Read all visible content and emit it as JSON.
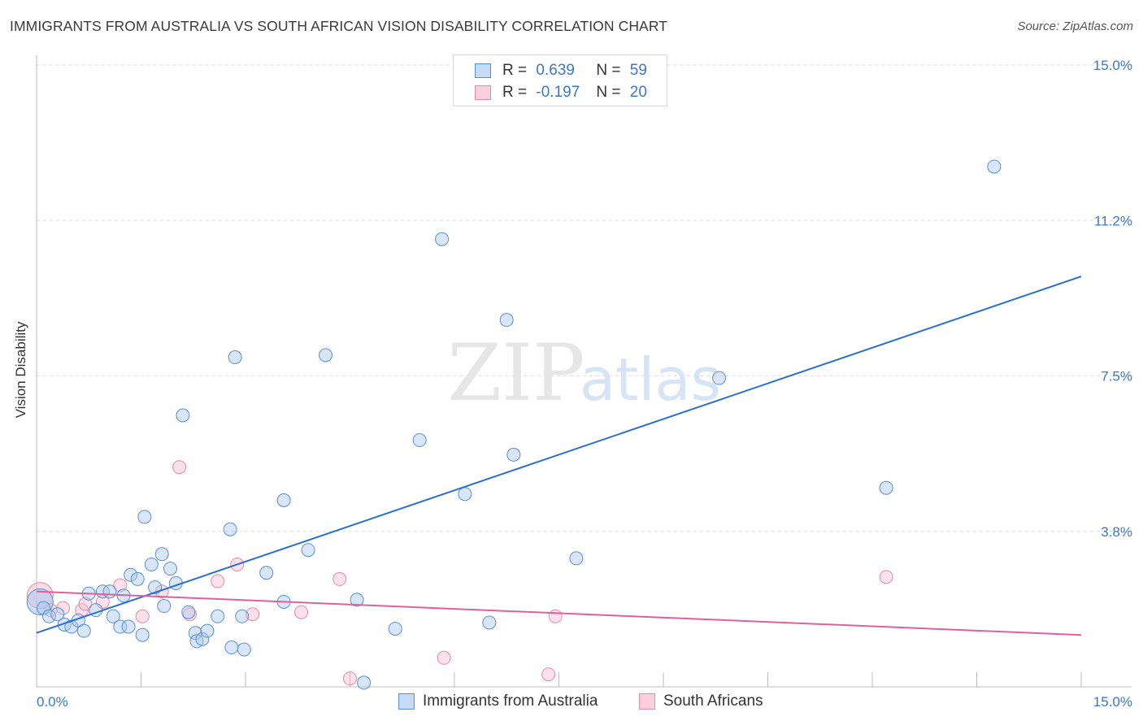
{
  "title": "IMMIGRANTS FROM AUSTRALIA VS SOUTH AFRICAN VISION DISABILITY CORRELATION CHART",
  "source": "Source: ZipAtlas.com",
  "watermark": {
    "zip": "ZIP",
    "atlas": "atlas"
  },
  "legend": {
    "series1": {
      "r_label": "R =",
      "r_value": "0.639",
      "n_label": "N =",
      "n_value": "59"
    },
    "series2": {
      "r_label": "R =",
      "r_value": "-0.197",
      "n_label": "N =",
      "n_value": "20"
    }
  },
  "colors": {
    "blue_fill": "#a9c8f0",
    "blue_stroke": "#5a8fd6",
    "blue_line": "#2a6fd1",
    "pink_fill": "#f7bfd0",
    "pink_stroke": "#e88aa8",
    "pink_line": "#e0609a",
    "tick_label": "#3b78c9",
    "grid": "#dddddd"
  },
  "chart_data": {
    "type": "scatter",
    "title": "IMMIGRANTS FROM AUSTRALIA VS SOUTH AFRICAN VISION DISABILITY CORRELATION CHART",
    "xlabel": "",
    "ylabel": "Vision Disability",
    "xlim": [
      0,
      15
    ],
    "ylim": [
      0,
      15
    ],
    "x_tick_labels": [
      "0.0%",
      "15.0%"
    ],
    "y_ticks": [
      3.75,
      7.5,
      11.25,
      15.0
    ],
    "y_tick_labels": [
      "3.8%",
      "7.5%",
      "11.2%",
      "15.0%"
    ],
    "series": [
      {
        "name": "Immigrants from Australia",
        "color": "#5a8fd6",
        "R": 0.639,
        "N": 59,
        "trendline": {
          "x": [
            0,
            15
          ],
          "y": [
            1.3,
            9.9
          ]
        },
        "points": [
          {
            "x": 0.05,
            "y": 2.05,
            "big": true
          },
          {
            "x": 0.1,
            "y": 1.9
          },
          {
            "x": 0.18,
            "y": 1.7
          },
          {
            "x": 0.3,
            "y": 1.75
          },
          {
            "x": 0.4,
            "y": 1.5
          },
          {
            "x": 0.5,
            "y": 1.45
          },
          {
            "x": 0.6,
            "y": 1.6
          },
          {
            "x": 0.68,
            "y": 1.35
          },
          {
            "x": 0.75,
            "y": 2.25
          },
          {
            "x": 0.85,
            "y": 1.85
          },
          {
            "x": 0.95,
            "y": 2.3
          },
          {
            "x": 1.05,
            "y": 2.3
          },
          {
            "x": 1.1,
            "y": 1.7
          },
          {
            "x": 1.2,
            "y": 1.45
          },
          {
            "x": 1.25,
            "y": 2.2
          },
          {
            "x": 1.32,
            "y": 1.45
          },
          {
            "x": 1.35,
            "y": 2.7
          },
          {
            "x": 1.45,
            "y": 2.6
          },
          {
            "x": 1.52,
            "y": 1.25
          },
          {
            "x": 1.55,
            "y": 4.1
          },
          {
            "x": 1.65,
            "y": 2.95
          },
          {
            "x": 1.7,
            "y": 2.4
          },
          {
            "x": 1.8,
            "y": 3.2
          },
          {
            "x": 1.83,
            "y": 1.95
          },
          {
            "x": 1.92,
            "y": 2.85
          },
          {
            "x": 2.0,
            "y": 2.5
          },
          {
            "x": 2.1,
            "y": 6.55
          },
          {
            "x": 2.18,
            "y": 1.8
          },
          {
            "x": 2.28,
            "y": 1.3
          },
          {
            "x": 2.3,
            "y": 1.1
          },
          {
            "x": 2.38,
            "y": 1.15
          },
          {
            "x": 2.45,
            "y": 1.35
          },
          {
            "x": 2.6,
            "y": 1.7
          },
          {
            "x": 2.78,
            "y": 3.8
          },
          {
            "x": 2.8,
            "y": 0.95
          },
          {
            "x": 2.85,
            "y": 7.95
          },
          {
            "x": 2.95,
            "y": 1.7
          },
          {
            "x": 2.98,
            "y": 0.9
          },
          {
            "x": 3.3,
            "y": 2.75
          },
          {
            "x": 3.55,
            "y": 2.05
          },
          {
            "x": 3.55,
            "y": 4.5
          },
          {
            "x": 3.9,
            "y": 3.3
          },
          {
            "x": 4.15,
            "y": 8.0
          },
          {
            "x": 4.6,
            "y": 2.1
          },
          {
            "x": 4.7,
            "y": 0.1
          },
          {
            "x": 5.15,
            "y": 1.4
          },
          {
            "x": 5.5,
            "y": 5.95
          },
          {
            "x": 5.82,
            "y": 10.8
          },
          {
            "x": 6.15,
            "y": 4.65
          },
          {
            "x": 6.5,
            "y": 1.55
          },
          {
            "x": 6.75,
            "y": 8.85
          },
          {
            "x": 6.85,
            "y": 5.6
          },
          {
            "x": 7.75,
            "y": 3.1
          },
          {
            "x": 9.8,
            "y": 7.45
          },
          {
            "x": 12.2,
            "y": 4.8
          },
          {
            "x": 13.75,
            "y": 12.55
          }
        ]
      },
      {
        "name": "South Africans",
        "color": "#e88aa8",
        "R": -0.197,
        "N": 20,
        "trendline": {
          "x": [
            0,
            15
          ],
          "y": [
            2.3,
            1.25
          ]
        },
        "points": [
          {
            "x": 0.05,
            "y": 2.2,
            "big": true
          },
          {
            "x": 0.2,
            "y": 1.85
          },
          {
            "x": 0.38,
            "y": 1.9
          },
          {
            "x": 0.65,
            "y": 1.85
          },
          {
            "x": 0.7,
            "y": 2.0
          },
          {
            "x": 0.95,
            "y": 2.05
          },
          {
            "x": 1.2,
            "y": 2.45
          },
          {
            "x": 1.52,
            "y": 1.7
          },
          {
            "x": 1.8,
            "y": 2.3
          },
          {
            "x": 2.05,
            "y": 5.3
          },
          {
            "x": 2.2,
            "y": 1.75
          },
          {
            "x": 2.6,
            "y": 2.55
          },
          {
            "x": 2.88,
            "y": 2.95
          },
          {
            "x": 3.1,
            "y": 1.75
          },
          {
            "x": 3.8,
            "y": 1.8
          },
          {
            "x": 4.35,
            "y": 2.6
          },
          {
            "x": 4.5,
            "y": 0.2
          },
          {
            "x": 5.85,
            "y": 0.7
          },
          {
            "x": 7.35,
            "y": 0.3
          },
          {
            "x": 7.45,
            "y": 1.7
          },
          {
            "x": 12.2,
            "y": 2.65
          }
        ]
      }
    ]
  },
  "bottom_legend": {
    "series1": "Immigrants from Australia",
    "series2": "South Africans"
  }
}
